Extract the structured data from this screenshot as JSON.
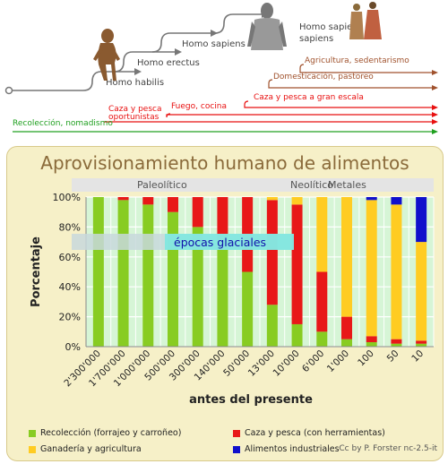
{
  "timeline": {
    "species": [
      {
        "label": "Homo habilis"
      },
      {
        "label": "Homo erectus"
      },
      {
        "label": "Homo sapiens"
      },
      {
        "label": "Homo sapiens"
      },
      {
        "label": "sapiens"
      }
    ],
    "brown_events": [
      {
        "label": "Agricultura, sedentarismo"
      },
      {
        "label": "Domesticación, pastoreo"
      }
    ],
    "red_events": [
      {
        "label": "Caza y pesca a gran escala"
      },
      {
        "label": "Fuego, cocina"
      },
      {
        "label": "Caza y pesca"
      },
      {
        "label": "oportunistas"
      }
    ],
    "green_events": [
      {
        "label": "Recolección, nomadismo"
      }
    ],
    "colors": {
      "species": "#777777",
      "brown": "#a0522d",
      "red": "#e81010",
      "green": "#20a020"
    }
  },
  "chart_data": {
    "type": "bar",
    "stacked": true,
    "title": "Aprovisionamiento humano de alimentos",
    "xlabel": "antes del presente",
    "ylabel": "Porcentaje",
    "ylim": [
      0,
      100
    ],
    "yticks": [
      "0%",
      "20%",
      "40%",
      "60%",
      "80%",
      "100%"
    ],
    "epochs": [
      "Paleolítico",
      "Neolítico",
      "Metales"
    ],
    "annotation": "épocas glaciales",
    "categories": [
      "2'300'000",
      "1'700'000",
      "1'000'000",
      "500'000",
      "300'000",
      "140'000",
      "50'000",
      "13'000",
      "10'000",
      "6'000",
      "1'000",
      "100",
      "50",
      "10"
    ],
    "series": [
      {
        "name": "Recolección (forrajeo y carroñeo)",
        "color": "#88cc22",
        "values": [
          100,
          98,
          95,
          90,
          80,
          65,
          50,
          28,
          15,
          10,
          5,
          3,
          2,
          2
        ]
      },
      {
        "name": "Caza y pesca (con herramientas)",
        "color": "#e81818",
        "values": [
          0,
          2,
          5,
          10,
          20,
          35,
          50,
          70,
          80,
          40,
          15,
          4,
          3,
          2
        ]
      },
      {
        "name": "Ganadería y agricultura",
        "color": "#ffcc22",
        "values": [
          0,
          0,
          0,
          0,
          0,
          0,
          0,
          2,
          5,
          50,
          80,
          91,
          90,
          66
        ]
      },
      {
        "name": "Alimentos industriales",
        "color": "#1010cc",
        "values": [
          0,
          0,
          0,
          0,
          0,
          0,
          0,
          0,
          0,
          0,
          0,
          2,
          5,
          30
        ]
      }
    ],
    "grid": true,
    "legend_position": "bottom",
    "credit": "Cc by P. Forster nc-2.5-it"
  }
}
